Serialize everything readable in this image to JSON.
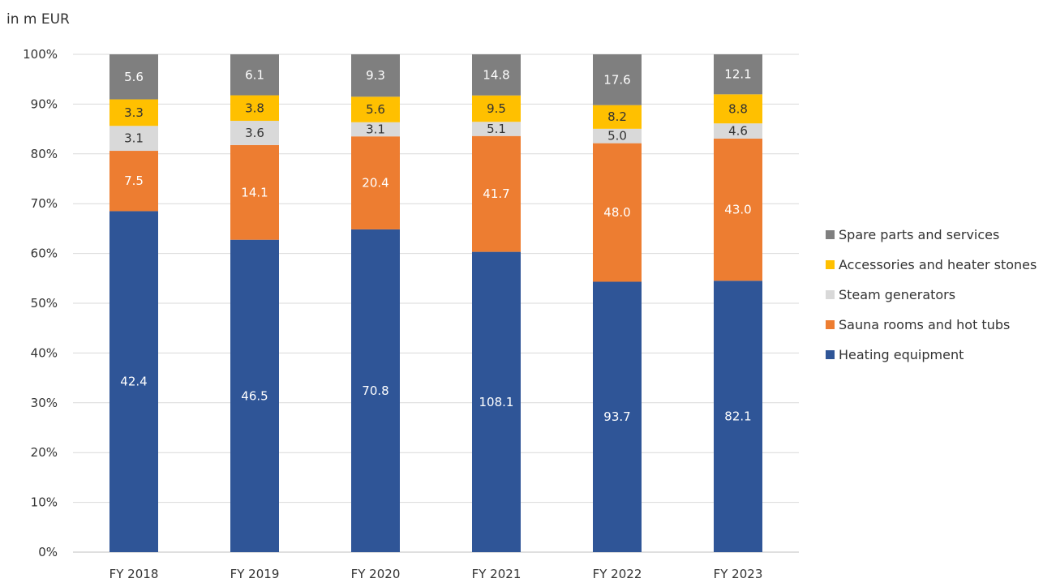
{
  "chart_data": {
    "type": "bar",
    "stacked": "percent",
    "unit_label": "in m EUR",
    "categories": [
      "FY 2018",
      "FY 2019",
      "FY 2020",
      "FY 2021",
      "FY 2022",
      "FY 2023"
    ],
    "y_ticks": [
      "0%",
      "10%",
      "20%",
      "30%",
      "40%",
      "50%",
      "60%",
      "70%",
      "80%",
      "90%",
      "100%"
    ],
    "ylim": [
      0,
      100
    ],
    "legend_position": "right",
    "series": [
      {
        "name": "Heating equipment",
        "color": "#2F5597",
        "label_color": "#ffffff",
        "values": [
          42.4,
          46.5,
          70.8,
          108.1,
          93.7,
          82.1
        ],
        "labels": [
          "42.4",
          "46.5",
          "70.8",
          "108.1",
          "93.7",
          "82.1"
        ]
      },
      {
        "name": "Sauna rooms and hot tubs",
        "color": "#ED7D31",
        "label_color": "#ffffff",
        "values": [
          7.5,
          14.1,
          20.4,
          41.7,
          48.0,
          43.0
        ],
        "labels": [
          "7.5",
          "14.1",
          "20.4",
          "41.7",
          "48.0",
          "43.0"
        ]
      },
      {
        "name": "Steam generators",
        "color": "#D9D9D9",
        "label_color": "#333333",
        "values": [
          3.1,
          3.6,
          3.1,
          5.1,
          5.0,
          4.6
        ],
        "labels": [
          "3.1",
          "3.6",
          "3.1",
          "5.1",
          "5.0",
          "4.6"
        ]
      },
      {
        "name": "Accessories and heater stones",
        "color": "#FFC000",
        "label_color": "#333333",
        "values": [
          3.3,
          3.8,
          5.6,
          9.5,
          8.2,
          8.8
        ],
        "labels": [
          "3.3",
          "3.8",
          "5.6",
          "9.5",
          "8.2",
          "8.8"
        ]
      },
      {
        "name": "Spare parts and services",
        "color": "#7F7F7F",
        "label_color": "#ffffff",
        "values": [
          5.6,
          6.1,
          9.3,
          14.8,
          17.6,
          12.1
        ],
        "labels": [
          "5.6",
          "6.1",
          "9.3",
          "14.8",
          "17.6",
          "12.1"
        ]
      }
    ]
  }
}
